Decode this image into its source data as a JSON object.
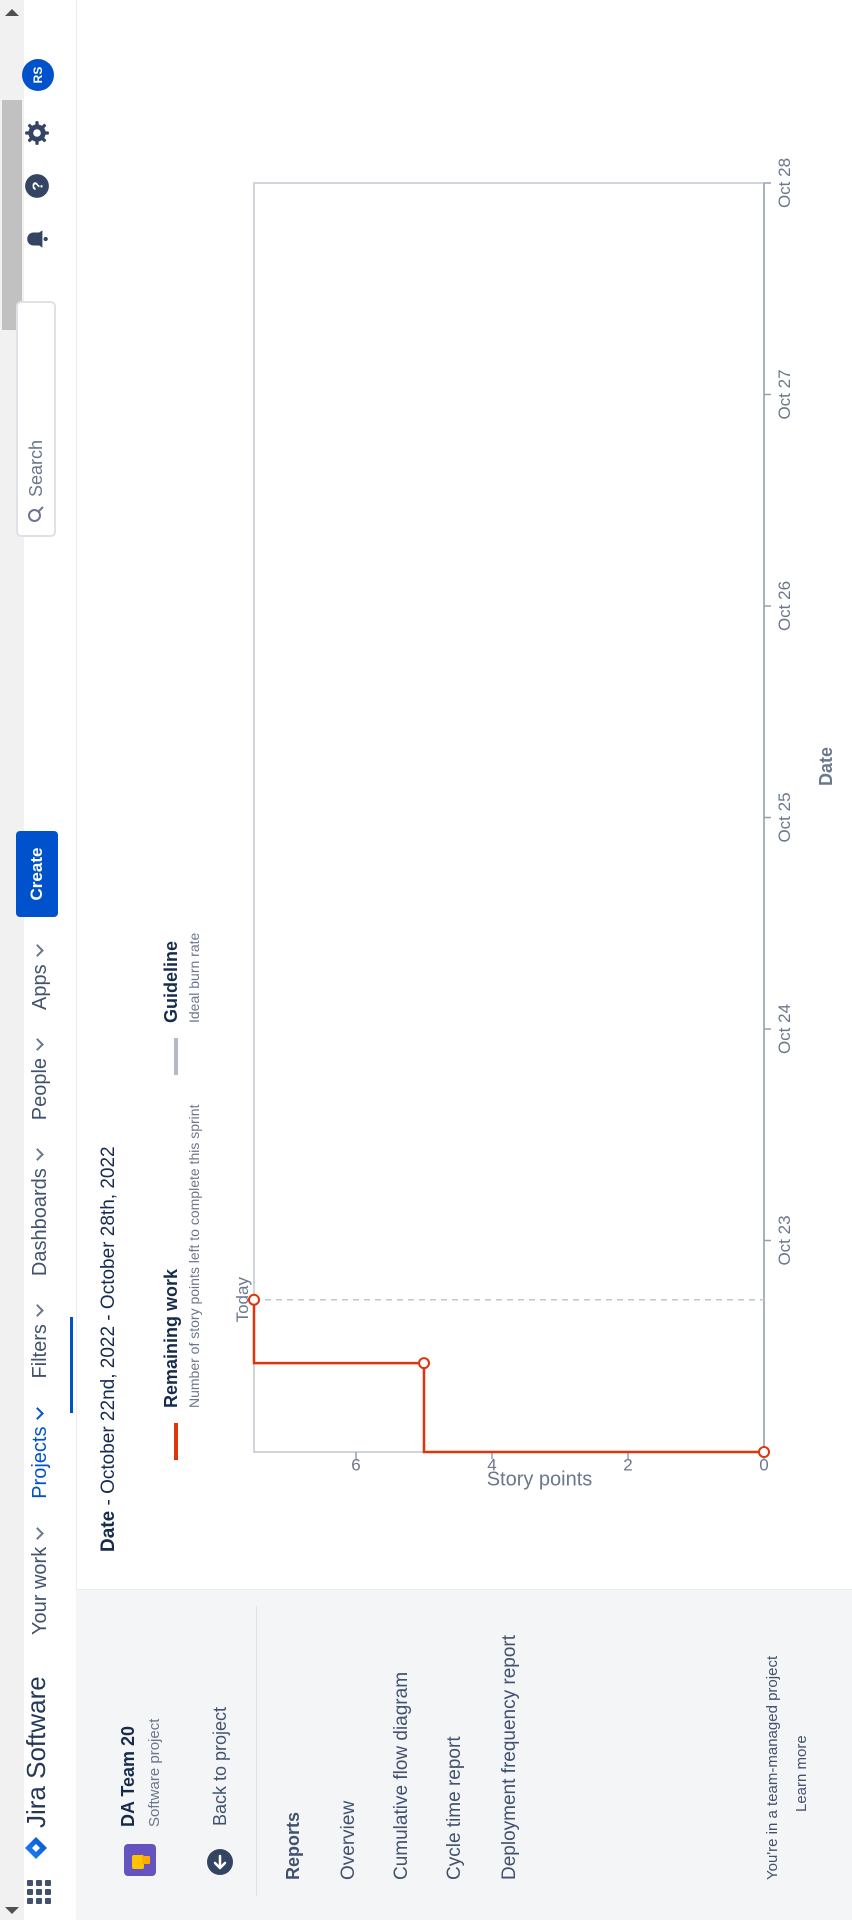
{
  "topnav": {
    "brand": "Jira Software",
    "items": [
      {
        "label": "Your work",
        "active": false
      },
      {
        "label": "Projects",
        "active": true
      },
      {
        "label": "Filters",
        "active": false
      },
      {
        "label": "Dashboards",
        "active": false
      },
      {
        "label": "People",
        "active": false
      },
      {
        "label": "Apps",
        "active": false
      }
    ],
    "create_label": "Create",
    "search_placeholder": "Search",
    "avatar_initials": "RS"
  },
  "sidebar": {
    "project_name": "DA Team 20",
    "project_type": "Software project",
    "back_label": "Back to project",
    "section_title": "Reports",
    "items": [
      "Overview",
      "Cumulative flow diagram",
      "Cycle time report",
      "Deployment frequency report"
    ],
    "footer_text": "You're in a team-managed project",
    "learn_more": "Learn more"
  },
  "report": {
    "date_label": "Date",
    "date_range": " - October 22nd, 2022 - October 28th, 2022"
  },
  "legend": {
    "remaining_title": "Remaining work",
    "remaining_desc": "Number of story points left to complete this sprint",
    "guideline_title": "Guideline",
    "guideline_desc": "Ideal burn rate"
  },
  "colors": {
    "remaining": "#de350b",
    "guideline": "#b3bac5",
    "accent": "#0052cc"
  },
  "chart_data": {
    "type": "line",
    "xlabel": "Date",
    "ylabel": "Story points",
    "x_ticks": [
      "Oct 23",
      "Oct 24",
      "Oct 25",
      "Oct 26",
      "Oct 27",
      "Oct 28"
    ],
    "y_ticks": [
      "0",
      "2",
      "4",
      "6"
    ],
    "ylim": [
      0,
      7.5
    ],
    "today_label": "Today",
    "today_position_days": 0.72,
    "series": [
      {
        "name": "Remaining work",
        "points": [
          {
            "t": 0.0,
            "y": 0
          },
          {
            "t": 0.0,
            "y": 5
          },
          {
            "t": 0.42,
            "y": 5
          },
          {
            "t": 0.42,
            "y": 8
          },
          {
            "t": 0.72,
            "y": 8
          }
        ],
        "markers": [
          {
            "t": 0.0,
            "y": 0
          },
          {
            "t": 0.42,
            "y": 5
          },
          {
            "t": 0.72,
            "y": 8
          }
        ]
      }
    ]
  }
}
